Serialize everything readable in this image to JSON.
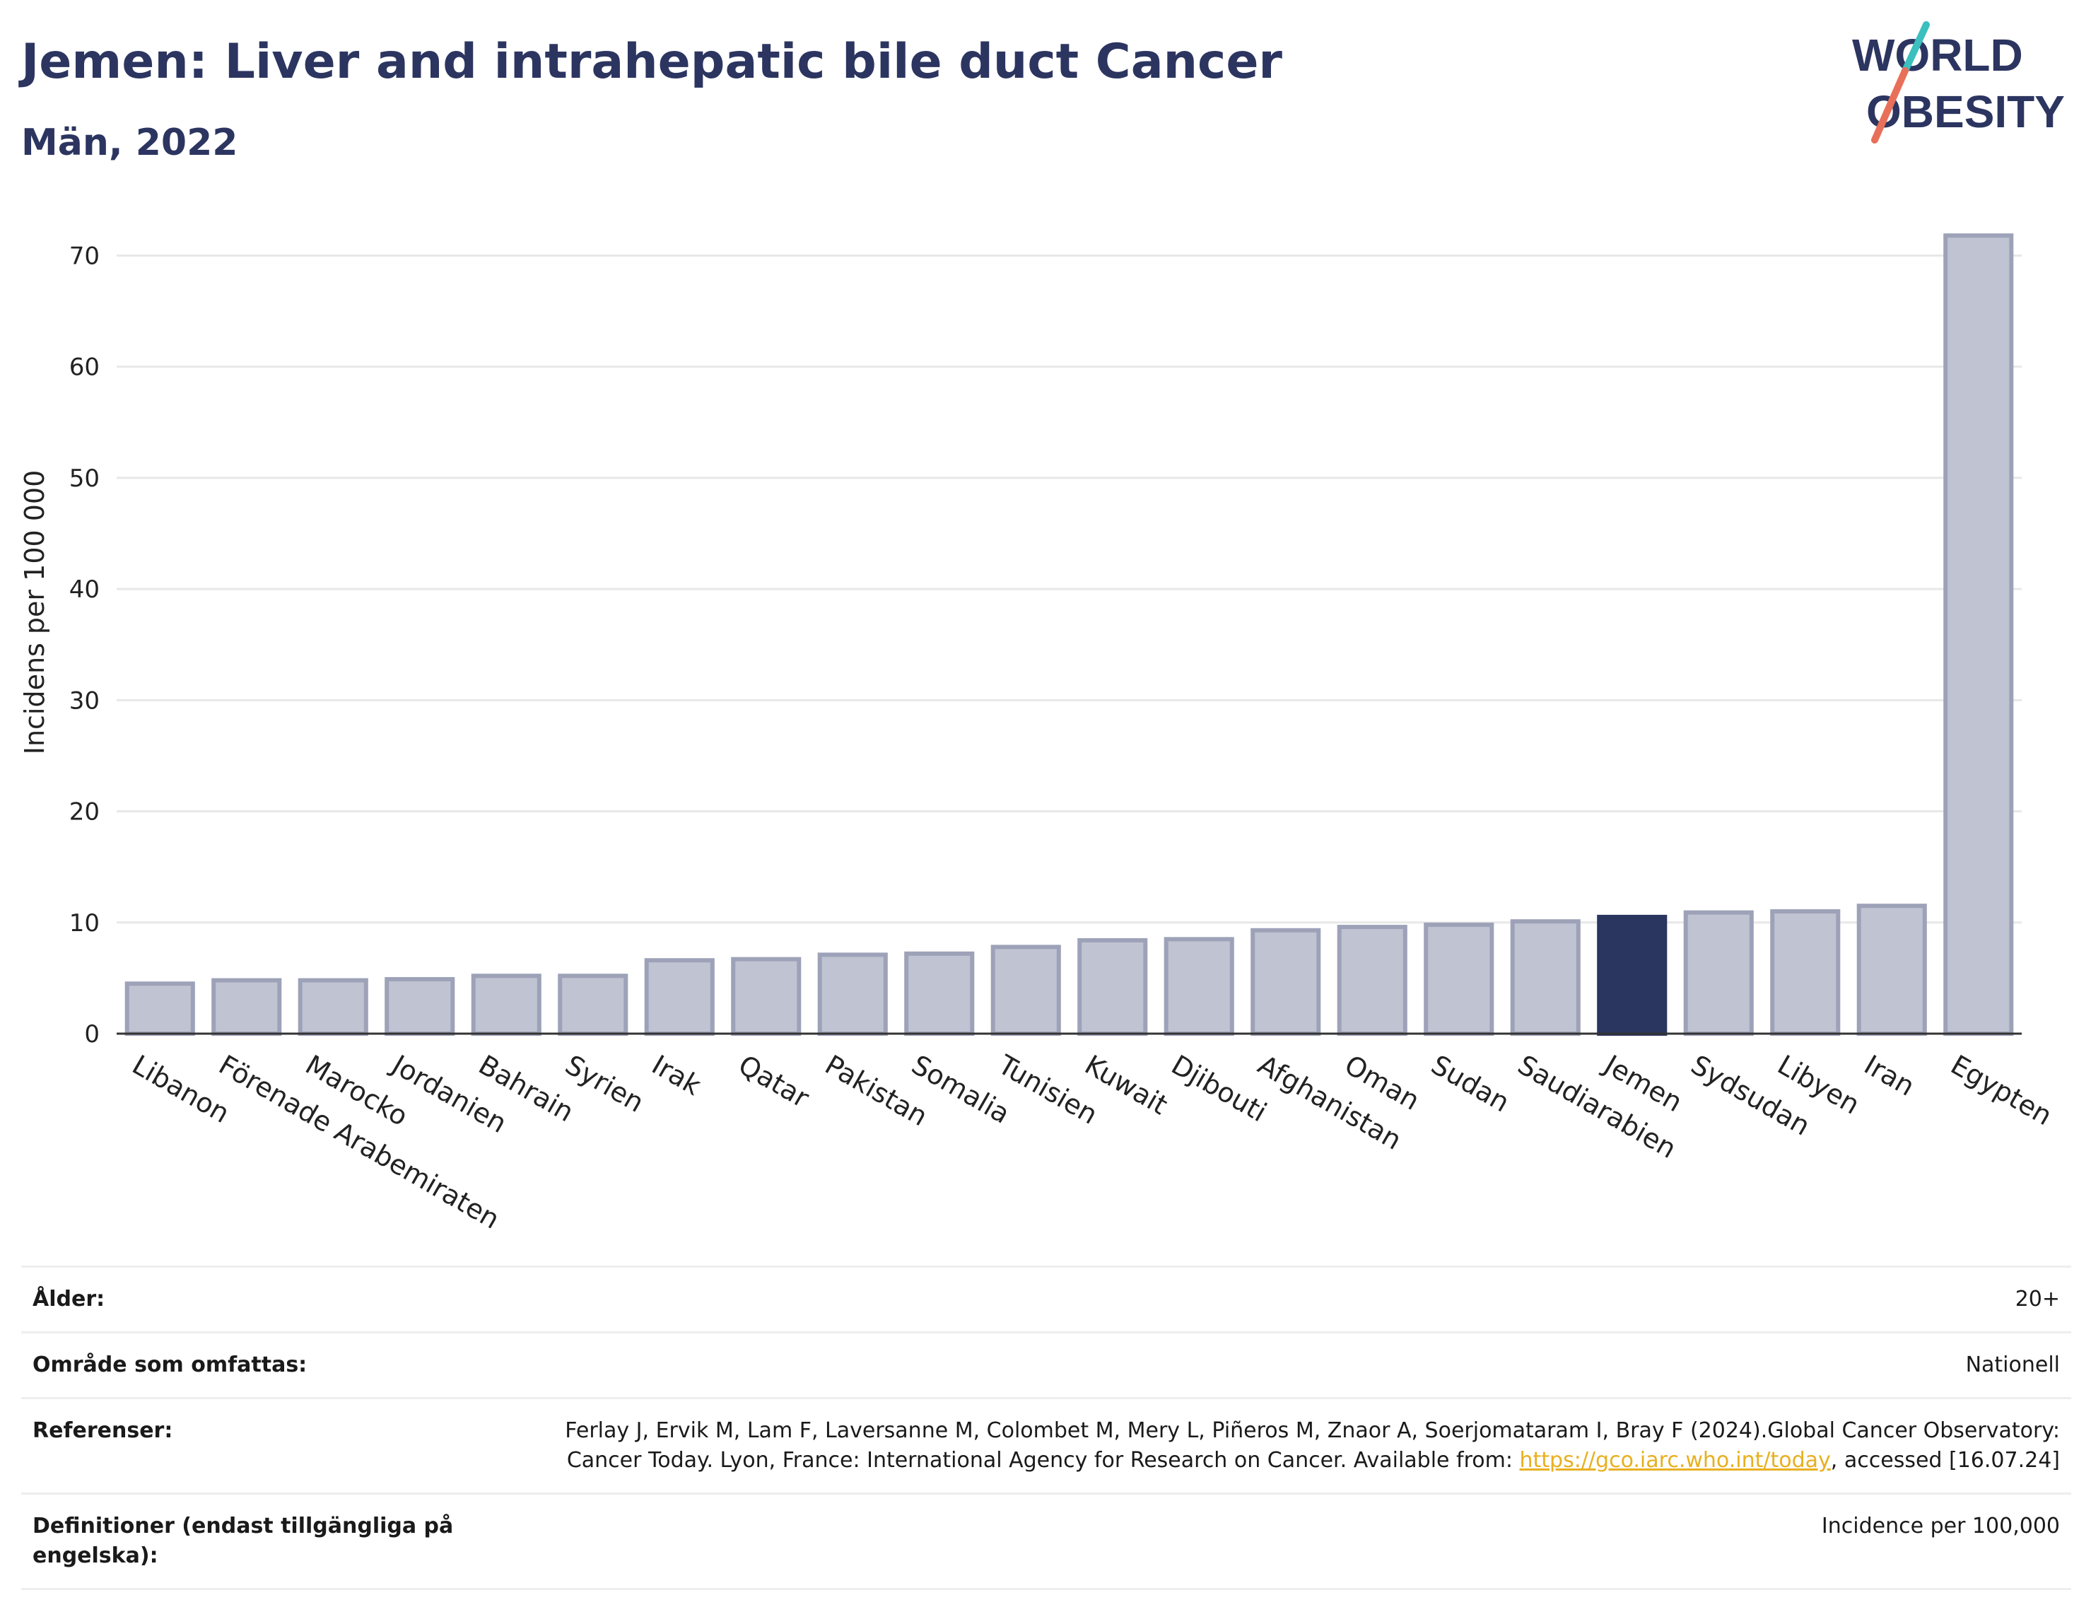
{
  "header": {
    "title": "Jemen: Liver and intrahepatic bile duct Cancer",
    "subtitle": "Män, 2022"
  },
  "logo": {
    "line1": "WORLD",
    "line2": "OBESITY",
    "accent_teal": "#3bbfbf",
    "accent_coral": "#e8705a",
    "text_color": "#2c3560"
  },
  "chart_data": {
    "type": "bar",
    "title": "Jemen: Liver and intrahepatic bile duct Cancer",
    "subtitle": "Män, 2022",
    "xlabel": "",
    "ylabel": "Incidens per 100 000",
    "ylim": [
      0,
      72
    ],
    "yticks": [
      0,
      10,
      20,
      30,
      40,
      50,
      60,
      70
    ],
    "grid": true,
    "highlight": "Jemen",
    "highlight_color": "#2a3560",
    "bar_color": "#c0c3d1",
    "categories": [
      "Libanon",
      "Förenade Arabemiraten",
      "Marocko",
      "Jordanien",
      "Bahrain",
      "Syrien",
      "Irak",
      "Qatar",
      "Pakistan",
      "Somalia",
      "Tunisien",
      "Kuwait",
      "Djibouti",
      "Afghanistan",
      "Oman",
      "Sudan",
      "Saudiarabien",
      "Jemen",
      "Sydsudan",
      "Libyen",
      "Iran",
      "Egypten"
    ],
    "values": [
      4.5,
      4.8,
      4.8,
      4.9,
      5.2,
      5.2,
      6.6,
      6.7,
      7.1,
      7.2,
      7.8,
      8.4,
      8.5,
      9.3,
      9.6,
      9.8,
      10.1,
      10.5,
      10.9,
      11.0,
      11.5,
      71.8
    ]
  },
  "meta": {
    "rows": [
      {
        "key": "Ålder:",
        "value": "20+"
      },
      {
        "key": "Område som omfattas:",
        "value": "Nationell"
      },
      {
        "key": "Referenser:",
        "value_pre": "Ferlay J, Ervik M, Lam F, Laversanne M, Colombet M, Mery L, Piñeros M, Znaor A, Soerjomataram I, Bray F (2024).Global Cancer Observatory: Cancer Today. Lyon, France: International Agency for Research on Cancer. Available from: ",
        "link": "https://gco.iarc.who.int/today",
        "value_post": ", accessed [16.07.24]"
      },
      {
        "key": "Definitioner (endast tillgängliga på engelska):",
        "value": "Incidence per 100,000"
      }
    ]
  }
}
